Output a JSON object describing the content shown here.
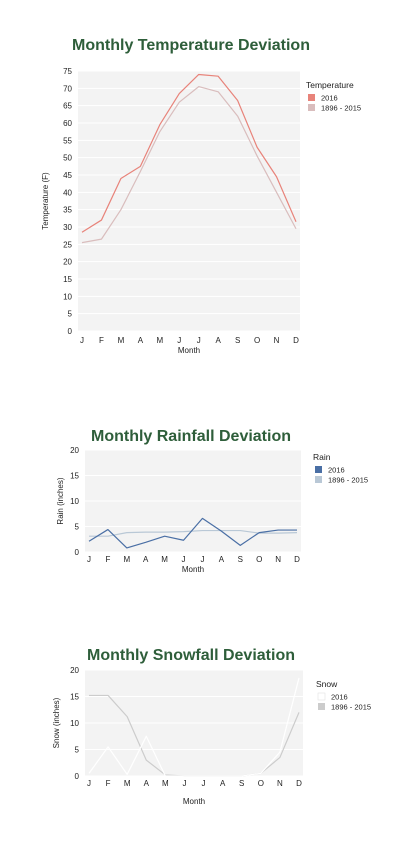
{
  "colors": {
    "title": "#2e5e3a",
    "plot_bg": "#f3f3f3",
    "grid": "#ffffff"
  },
  "chart_data": [
    {
      "type": "line",
      "title": "Monthly Temperature Deviation",
      "xlabel": "Month",
      "ylabel": "Temperature (F)",
      "categories": [
        "J",
        "F",
        "M",
        "A",
        "M",
        "J",
        "J",
        "A",
        "S",
        "O",
        "N",
        "D"
      ],
      "ylim": [
        0,
        75
      ],
      "yticks": [
        0,
        5,
        10,
        15,
        20,
        25,
        30,
        35,
        40,
        45,
        50,
        55,
        60,
        65,
        70,
        75
      ],
      "grid": true,
      "legend": {
        "title": "Temperature",
        "position": "right"
      },
      "series": [
        {
          "name": "2016",
          "color": "#e8837a",
          "values": [
            28.5,
            32,
            44,
            47.5,
            59.5,
            68.5,
            74,
            73.5,
            66.5,
            53,
            44.5,
            31.5
          ]
        },
        {
          "name": "1896 - 2015",
          "color": "#d9bdbd",
          "values": [
            25.5,
            26.5,
            35,
            46,
            57.5,
            66,
            70.5,
            69,
            62,
            50.5,
            40,
            29.5
          ]
        }
      ]
    },
    {
      "type": "line",
      "title": "Monthly Rainfall Deviation",
      "xlabel": "Month",
      "ylabel": "Rain (inches)",
      "categories": [
        "J",
        "F",
        "M",
        "A",
        "M",
        "J",
        "J",
        "A",
        "S",
        "O",
        "N",
        "D"
      ],
      "ylim": [
        0,
        20
      ],
      "yticks": [
        0,
        5,
        10,
        15,
        20
      ],
      "grid": true,
      "legend": {
        "title": "Rain",
        "position": "right"
      },
      "series": [
        {
          "name": "2016",
          "color": "#4a6fa5",
          "values": [
            2.1,
            4.4,
            0.8,
            1.9,
            3.1,
            2.3,
            6.6,
            4.1,
            1.3,
            3.8,
            4.3,
            4.3
          ]
        },
        {
          "name": "1896 - 2015",
          "color": "#b9c8d6",
          "values": [
            3.1,
            3.1,
            3.8,
            3.9,
            3.9,
            4.0,
            4.2,
            4.2,
            4.2,
            3.7,
            3.7,
            3.8
          ]
        }
      ]
    },
    {
      "type": "line",
      "title": "Monthly Snowfall Deviation",
      "xlabel": "Month",
      "ylabel": "Snow (inches)",
      "categories": [
        "J",
        "F",
        "M",
        "A",
        "M",
        "J",
        "J",
        "A",
        "S",
        "O",
        "N",
        "D"
      ],
      "ylim": [
        0,
        20
      ],
      "yticks": [
        0,
        5,
        10,
        15,
        20
      ],
      "grid": true,
      "legend": {
        "title": "Snow",
        "position": "right"
      },
      "series": [
        {
          "name": "2016",
          "color": "#ffffff",
          "values": [
            0.5,
            5.5,
            0.3,
            7.5,
            0,
            0,
            0,
            0,
            0,
            0.5,
            4.5,
            18.5
          ]
        },
        {
          "name": "1896 - 2015",
          "color": "#cccccc",
          "values": [
            15.2,
            15.2,
            11.2,
            3.0,
            0.2,
            0,
            0,
            0,
            0,
            0.5,
            3.5,
            12.0
          ]
        }
      ]
    }
  ]
}
